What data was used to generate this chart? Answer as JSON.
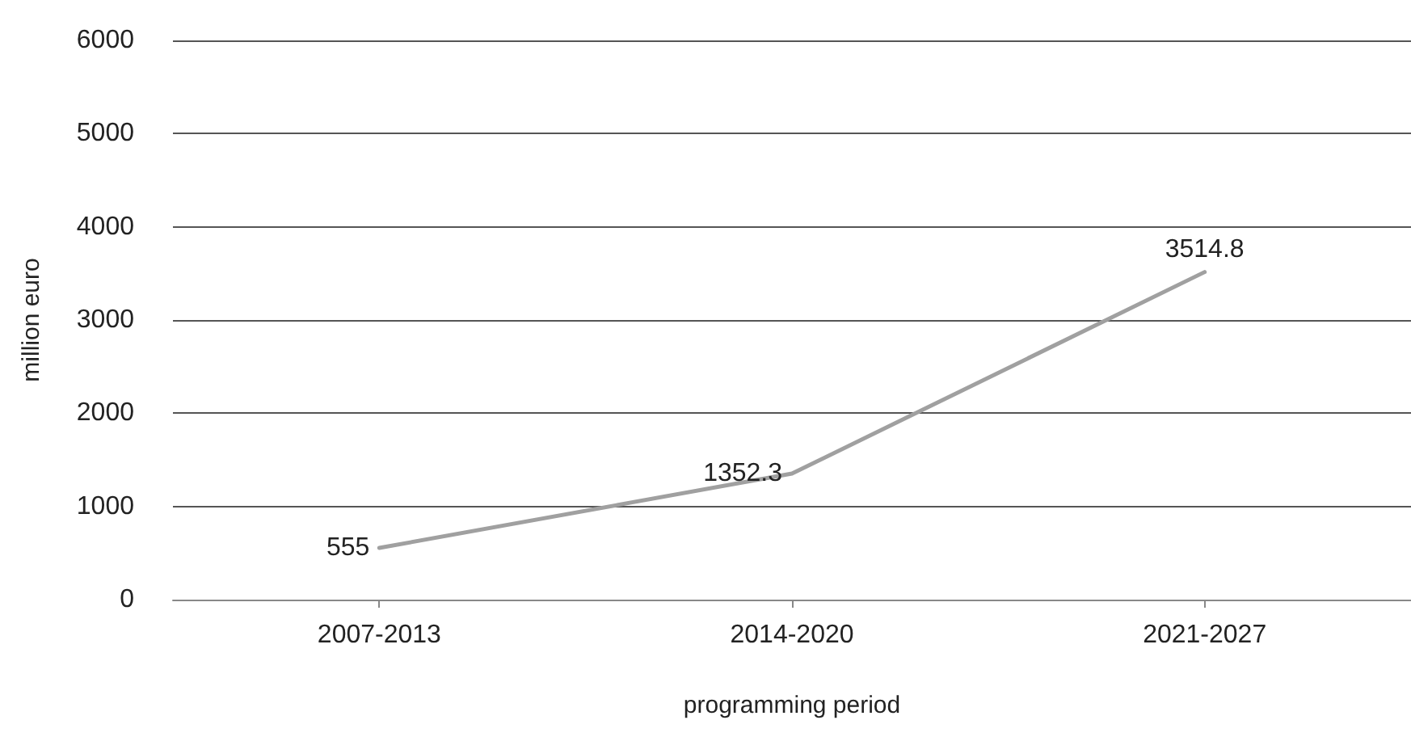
{
  "chart_data": {
    "type": "line",
    "xlabel": "programming period",
    "ylabel": "million euro",
    "categories": [
      "2007-2013",
      "2014-2020",
      "2021-2027"
    ],
    "values": [
      555,
      1352.3,
      3514.8
    ],
    "data_labels": true,
    "color": "#a0a0a0",
    "ylim": [
      0,
      6000
    ],
    "yticks": [
      0,
      1000,
      2000,
      3000,
      4000,
      5000,
      6000
    ],
    "grid": "y",
    "marker": "none",
    "line_style": "solid"
  }
}
